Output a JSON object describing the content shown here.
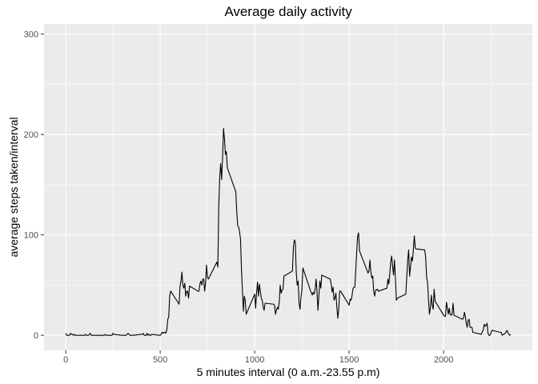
{
  "chart_data": {
    "type": "line",
    "title": "Average daily activity",
    "xlabel": "5 minutes interval (0 a.m.-23.55 p.m)",
    "ylabel": "average steps taken/interval",
    "xlim": [
      -115,
      2470
    ],
    "ylim": [
      -15,
      310
    ],
    "xticks": [
      0,
      500,
      1000,
      1500,
      2000
    ],
    "yticks": [
      0,
      100,
      200,
      300
    ],
    "grid": true,
    "colors": {
      "panel": "#ebebeb",
      "grid": "#ffffff",
      "line": "#000000",
      "tick_text": "#4d4d4d"
    },
    "series": [
      {
        "points": [
          [
            0,
            2
          ],
          [
            5,
            0
          ],
          [
            10,
            0
          ],
          [
            15,
            0
          ],
          [
            20,
            0
          ],
          [
            25,
            2
          ],
          [
            30,
            1
          ],
          [
            35,
            1
          ],
          [
            40,
            0
          ],
          [
            45,
            1
          ],
          [
            50,
            0
          ],
          [
            55,
            0
          ],
          [
            100,
            0
          ],
          [
            105,
            1
          ],
          [
            110,
            0
          ],
          [
            115,
            0
          ],
          [
            120,
            0
          ],
          [
            125,
            1
          ],
          [
            130,
            2
          ],
          [
            135,
            0
          ],
          [
            140,
            0
          ],
          [
            145,
            0
          ],
          [
            150,
            0
          ],
          [
            155,
            0
          ],
          [
            200,
            0
          ],
          [
            205,
            0
          ],
          [
            210,
            1
          ],
          [
            215,
            0
          ],
          [
            220,
            0
          ],
          [
            225,
            0
          ],
          [
            230,
            0
          ],
          [
            235,
            0
          ],
          [
            240,
            0
          ],
          [
            245,
            0
          ],
          [
            250,
            2
          ],
          [
            255,
            1
          ],
          [
            300,
            0
          ],
          [
            305,
            0
          ],
          [
            310,
            0
          ],
          [
            315,
            0
          ],
          [
            320,
            0
          ],
          [
            325,
            1
          ],
          [
            330,
            2
          ],
          [
            335,
            1
          ],
          [
            340,
            0
          ],
          [
            345,
            0
          ],
          [
            350,
            0
          ],
          [
            355,
            0
          ],
          [
            400,
            1
          ],
          [
            405,
            1
          ],
          [
            410,
            2
          ],
          [
            415,
            0
          ],
          [
            420,
            0
          ],
          [
            425,
            0
          ],
          [
            430,
            2
          ],
          [
            435,
            0
          ],
          [
            440,
            1
          ],
          [
            445,
            0
          ],
          [
            450,
            0
          ],
          [
            455,
            1
          ],
          [
            500,
            0
          ],
          [
            505,
            1
          ],
          [
            510,
            3
          ],
          [
            515,
            2
          ],
          [
            520,
            3
          ],
          [
            525,
            3
          ],
          [
            530,
            2
          ],
          [
            535,
            6
          ],
          [
            540,
            16
          ],
          [
            545,
            18
          ],
          [
            550,
            39
          ],
          [
            555,
            44
          ],
          [
            600,
            31
          ],
          [
            605,
            49
          ],
          [
            610,
            54
          ],
          [
            615,
            63
          ],
          [
            620,
            50
          ],
          [
            625,
            47
          ],
          [
            630,
            52
          ],
          [
            635,
            39
          ],
          [
            640,
            44
          ],
          [
            645,
            44
          ],
          [
            650,
            37
          ],
          [
            655,
            49
          ],
          [
            700,
            44
          ],
          [
            705,
            44
          ],
          [
            710,
            51
          ],
          [
            715,
            54
          ],
          [
            720,
            50
          ],
          [
            725,
            56
          ],
          [
            730,
            56
          ],
          [
            735,
            44
          ],
          [
            740,
            52
          ],
          [
            745,
            70
          ],
          [
            750,
            58
          ],
          [
            755,
            56
          ],
          [
            800,
            73
          ],
          [
            805,
            68
          ],
          [
            810,
            129
          ],
          [
            815,
            158
          ],
          [
            820,
            171
          ],
          [
            825,
            155
          ],
          [
            830,
            177
          ],
          [
            835,
            206
          ],
          [
            840,
            196
          ],
          [
            845,
            180
          ],
          [
            850,
            183
          ],
          [
            855,
            167
          ],
          [
            900,
            143
          ],
          [
            905,
            124
          ],
          [
            910,
            109
          ],
          [
            915,
            108
          ],
          [
            920,
            103
          ],
          [
            925,
            96
          ],
          [
            930,
            66
          ],
          [
            935,
            45
          ],
          [
            940,
            24
          ],
          [
            945,
            39
          ],
          [
            950,
            35
          ],
          [
            955,
            21
          ],
          [
            1000,
            41
          ],
          [
            1005,
            27
          ],
          [
            1010,
            42
          ],
          [
            1015,
            53
          ],
          [
            1020,
            39
          ],
          [
            1025,
            51
          ],
          [
            1030,
            44
          ],
          [
            1035,
            37
          ],
          [
            1040,
            35
          ],
          [
            1045,
            28
          ],
          [
            1050,
            25
          ],
          [
            1055,
            32
          ],
          [
            1100,
            31
          ],
          [
            1105,
            30
          ],
          [
            1110,
            21
          ],
          [
            1115,
            25
          ],
          [
            1120,
            28
          ],
          [
            1125,
            26
          ],
          [
            1130,
            33
          ],
          [
            1135,
            50
          ],
          [
            1140,
            42
          ],
          [
            1145,
            45
          ],
          [
            1150,
            46
          ],
          [
            1155,
            59
          ],
          [
            1200,
            64
          ],
          [
            1205,
            88
          ],
          [
            1210,
            95
          ],
          [
            1215,
            93
          ],
          [
            1220,
            63
          ],
          [
            1225,
            50
          ],
          [
            1230,
            54
          ],
          [
            1235,
            32
          ],
          [
            1240,
            26
          ],
          [
            1245,
            38
          ],
          [
            1250,
            45
          ],
          [
            1255,
            67
          ],
          [
            1300,
            42
          ],
          [
            1305,
            40
          ],
          [
            1310,
            43
          ],
          [
            1315,
            41
          ],
          [
            1320,
            46
          ],
          [
            1325,
            56
          ],
          [
            1330,
            43
          ],
          [
            1335,
            25
          ],
          [
            1340,
            40
          ],
          [
            1345,
            54
          ],
          [
            1350,
            47
          ],
          [
            1355,
            60
          ],
          [
            1400,
            56
          ],
          [
            1405,
            51
          ],
          [
            1410,
            43
          ],
          [
            1415,
            48
          ],
          [
            1420,
            35
          ],
          [
            1425,
            37
          ],
          [
            1430,
            42
          ],
          [
            1435,
            28
          ],
          [
            1440,
            17
          ],
          [
            1445,
            26
          ],
          [
            1450,
            44
          ],
          [
            1455,
            44
          ],
          [
            1500,
            30
          ],
          [
            1505,
            36
          ],
          [
            1510,
            35
          ],
          [
            1515,
            39
          ],
          [
            1520,
            46
          ],
          [
            1525,
            48
          ],
          [
            1530,
            48
          ],
          [
            1535,
            65
          ],
          [
            1540,
            83
          ],
          [
            1545,
            99
          ],
          [
            1550,
            102
          ],
          [
            1555,
            84
          ],
          [
            1600,
            62
          ],
          [
            1605,
            64
          ],
          [
            1610,
            75
          ],
          [
            1615,
            63
          ],
          [
            1620,
            57
          ],
          [
            1625,
            59
          ],
          [
            1630,
            44
          ],
          [
            1635,
            39
          ],
          [
            1640,
            45
          ],
          [
            1645,
            45
          ],
          [
            1650,
            46
          ],
          [
            1655,
            44
          ],
          [
            1700,
            47
          ],
          [
            1705,
            56
          ],
          [
            1710,
            51
          ],
          [
            1715,
            61
          ],
          [
            1720,
            73
          ],
          [
            1725,
            79
          ],
          [
            1730,
            69
          ],
          [
            1735,
            60
          ],
          [
            1740,
            75
          ],
          [
            1745,
            57
          ],
          [
            1750,
            35
          ],
          [
            1755,
            37
          ],
          [
            1800,
            41
          ],
          [
            1805,
            58
          ],
          [
            1810,
            75
          ],
          [
            1815,
            85
          ],
          [
            1820,
            59
          ],
          [
            1825,
            68
          ],
          [
            1830,
            78
          ],
          [
            1835,
            74
          ],
          [
            1840,
            85
          ],
          [
            1845,
            99
          ],
          [
            1850,
            87
          ],
          [
            1855,
            86
          ],
          [
            1900,
            85
          ],
          [
            1905,
            78
          ],
          [
            1910,
            58
          ],
          [
            1915,
            53
          ],
          [
            1920,
            36
          ],
          [
            1925,
            21
          ],
          [
            1930,
            27
          ],
          [
            1935,
            40
          ],
          [
            1940,
            30
          ],
          [
            1945,
            26
          ],
          [
            1950,
            46
          ],
          [
            1955,
            34
          ],
          [
            2000,
            20
          ],
          [
            2005,
            19
          ],
          [
            2010,
            19
          ],
          [
            2015,
            33
          ],
          [
            2020,
            27
          ],
          [
            2025,
            21
          ],
          [
            2030,
            27
          ],
          [
            2035,
            21
          ],
          [
            2040,
            20
          ],
          [
            2045,
            21
          ],
          [
            2050,
            32
          ],
          [
            2055,
            20
          ],
          [
            2100,
            16
          ],
          [
            2105,
            17
          ],
          [
            2110,
            23
          ],
          [
            2115,
            19
          ],
          [
            2120,
            12
          ],
          [
            2125,
            8
          ],
          [
            2130,
            15
          ],
          [
            2135,
            16
          ],
          [
            2140,
            8
          ],
          [
            2145,
            8
          ],
          [
            2150,
            8
          ],
          [
            2155,
            3
          ],
          [
            2200,
            1
          ],
          [
            2205,
            4
          ],
          [
            2210,
            5
          ],
          [
            2215,
            11
          ],
          [
            2220,
            9
          ],
          [
            2225,
            10
          ],
          [
            2230,
            12
          ],
          [
            2235,
            2
          ],
          [
            2240,
            0
          ],
          [
            2245,
            0
          ],
          [
            2250,
            2
          ],
          [
            2255,
            5
          ],
          [
            2300,
            3
          ],
          [
            2305,
            3
          ],
          [
            2310,
            0
          ],
          [
            2315,
            1
          ],
          [
            2320,
            1
          ],
          [
            2325,
            2
          ],
          [
            2330,
            3
          ],
          [
            2335,
            5
          ],
          [
            2340,
            3
          ],
          [
            2345,
            1
          ],
          [
            2350,
            0
          ],
          [
            2355,
            1
          ]
        ]
      }
    ]
  }
}
